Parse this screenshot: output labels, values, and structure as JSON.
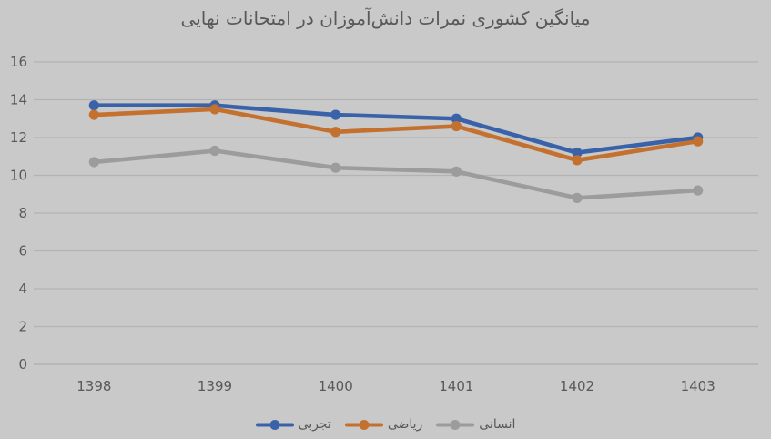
{
  "chart_data": {
    "type": "line",
    "title": "میانگین کشوری نمرات دانش‌آموزان در امتحانات نهایی",
    "categories": [
      "1398",
      "1399",
      "1400",
      "1401",
      "1402",
      "1403"
    ],
    "series": [
      {
        "name": "تجربی",
        "color": "#3A62A8",
        "values": [
          13.7,
          13.7,
          13.2,
          13.0,
          11.2,
          12.0
        ]
      },
      {
        "name": "ریاضی",
        "color": "#C4702E",
        "values": [
          13.2,
          13.5,
          12.3,
          12.6,
          10.8,
          11.8
        ]
      },
      {
        "name": "انسانی",
        "color": "#9C9C9C",
        "values": [
          10.7,
          11.3,
          10.4,
          10.2,
          8.8,
          9.2
        ]
      }
    ],
    "xlabel": "",
    "ylabel": "",
    "ylim": [
      0,
      16
    ],
    "yticks": [
      0,
      2,
      4,
      6,
      8,
      10,
      12,
      14,
      16
    ],
    "grid": true,
    "legend_position": "bottom",
    "marker": "circle",
    "colors": {
      "background": "#C9C9C9",
      "gridline": "#B3B3B3",
      "axis_text": "#595959",
      "title_text": "#595959"
    }
  }
}
